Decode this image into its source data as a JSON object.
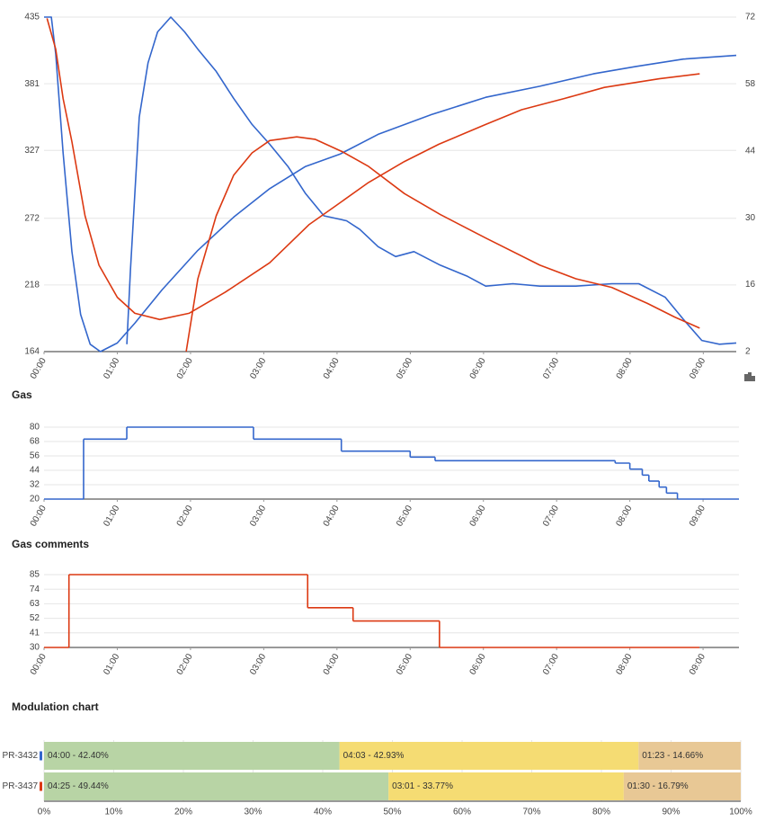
{
  "chart_data": [
    {
      "type": "line",
      "xlim": [
        0,
        9.45
      ],
      "xticks": [
        {
          "value": 0,
          "label": "00:00"
        },
        {
          "value": 1,
          "label": "01:00"
        },
        {
          "value": 2,
          "label": "02:00"
        },
        {
          "value": 3,
          "label": "03:00"
        },
        {
          "value": 4,
          "label": "04:00"
        },
        {
          "value": 5,
          "label": "05:00"
        },
        {
          "value": 6,
          "label": "06:00"
        },
        {
          "value": 7,
          "label": "07:00"
        },
        {
          "value": 8,
          "label": "08:00"
        },
        {
          "value": 9,
          "label": "09:00"
        }
      ],
      "ylim": [
        164,
        435
      ],
      "yticks": [
        164,
        218,
        272,
        327,
        381,
        435
      ],
      "y2lim": [
        2,
        72
      ],
      "y2ticks": [
        2,
        16,
        30,
        44,
        58,
        72
      ],
      "grid": true,
      "series": [
        {
          "color": "#3366cc",
          "x": [
            0,
            0.1,
            0.16,
            0.26,
            0.38,
            0.5,
            0.63,
            0.77,
            1.0,
            1.24,
            1.61,
            2.1,
            2.59,
            3.08,
            3.57,
            4.04,
            4.56,
            5.29,
            6.03,
            6.77,
            7.5,
            8.08,
            8.73,
            9.45
          ],
          "values": [
            435,
            435,
            405,
            325,
            245,
            194,
            170,
            164,
            171,
            187,
            214,
            246,
            273,
            296,
            314,
            324,
            340,
            356,
            370,
            379,
            389,
            395,
            401,
            404
          ]
        },
        {
          "color": "#3366cc",
          "x": [
            1.13,
            1.18,
            1.3,
            1.42,
            1.55,
            1.73,
            1.92,
            2.1,
            2.35,
            2.59,
            2.84,
            3.08,
            3.33,
            3.57,
            3.82,
            4.13,
            4.31,
            4.56,
            4.8,
            5.05,
            5.41,
            5.78,
            6.03,
            6.4,
            6.77,
            7.26,
            7.75,
            8.12,
            8.48,
            8.73,
            8.98,
            9.22,
            9.45
          ],
          "values": [
            170,
            230,
            354,
            398,
            423,
            435,
            423,
            409,
            391,
            369,
            348,
            332,
            314,
            292,
            274,
            270,
            263,
            249,
            241,
            245,
            234,
            225,
            217,
            219,
            217,
            217,
            219,
            219,
            208,
            190,
            173,
            170,
            171
          ]
        },
        {
          "color": "#dc3912",
          "x": [
            0.04,
            0.16,
            0.26,
            0.38,
            0.56,
            0.75,
            1.0,
            1.24,
            1.58,
            1.98,
            2.47,
            3.08,
            3.62,
            3.98,
            4.43,
            4.92,
            5.39,
            6.03,
            6.52,
            7.1,
            7.65,
            8.4,
            8.95
          ],
          "values": [
            434,
            409,
            369,
            334,
            274,
            234,
            208,
            195,
            190,
            195,
            212,
            236,
            267,
            282,
            301,
            318,
            332,
            348,
            360,
            369,
            378,
            385,
            389
          ]
        },
        {
          "color": "#dc3912",
          "x": [
            1.94,
            2.1,
            2.35,
            2.59,
            2.84,
            3.08,
            3.45,
            3.7,
            4.07,
            4.43,
            4.92,
            5.41,
            6.03,
            6.77,
            7.26,
            7.75,
            8.24,
            8.61,
            8.95
          ],
          "values": [
            164,
            223,
            274,
            307,
            325,
            335,
            338,
            336,
            326,
            314,
            292,
            275,
            256,
            234,
            223,
            216,
            203,
            192,
            183
          ]
        }
      ]
    },
    {
      "type": "step",
      "title": "Gas",
      "color": "#3366cc",
      "x": [
        0,
        0.54,
        1.13,
        2.86,
        4.06,
        5.0,
        5.34,
        7.8,
        8.0,
        8.17,
        8.26,
        8.4,
        8.5,
        8.65,
        9.49
      ],
      "values": [
        20,
        70,
        80,
        70,
        60,
        55,
        52,
        50,
        45,
        40,
        35,
        30,
        25,
        20,
        20
      ],
      "xlim": [
        0,
        9.49
      ],
      "xticks": [
        {
          "value": 0,
          "label": "00:00"
        },
        {
          "value": 1,
          "label": "01:00"
        },
        {
          "value": 2,
          "label": "02:00"
        },
        {
          "value": 3,
          "label": "03:00"
        },
        {
          "value": 4,
          "label": "04:00"
        },
        {
          "value": 5,
          "label": "05:00"
        },
        {
          "value": 6,
          "label": "06:00"
        },
        {
          "value": 7,
          "label": "07:00"
        },
        {
          "value": 8,
          "label": "08:00"
        },
        {
          "value": 9,
          "label": "09:00"
        }
      ],
      "ylim": [
        20,
        80
      ],
      "yticks": [
        20,
        32,
        44,
        56,
        68,
        80
      ],
      "grid": true
    },
    {
      "type": "step",
      "title": "Gas comments",
      "color": "#dc3912",
      "x": [
        0,
        0.34,
        3.6,
        4.22,
        5.4,
        8.95
      ],
      "values": [
        30,
        85,
        60,
        50,
        30,
        30
      ],
      "xlim": [
        0,
        9.49
      ],
      "xticks": [
        {
          "value": 0,
          "label": "00:00"
        },
        {
          "value": 1,
          "label": "01:00"
        },
        {
          "value": 2,
          "label": "02:00"
        },
        {
          "value": 3,
          "label": "03:00"
        },
        {
          "value": 4,
          "label": "04:00"
        },
        {
          "value": 5,
          "label": "05:00"
        },
        {
          "value": 6,
          "label": "06:00"
        },
        {
          "value": 7,
          "label": "07:00"
        },
        {
          "value": 8,
          "label": "08:00"
        },
        {
          "value": 9,
          "label": "09:00"
        }
      ],
      "ylim": [
        30,
        85
      ],
      "yticks": [
        30,
        41,
        52,
        63,
        74,
        85
      ],
      "grid": true
    },
    {
      "type": "stacked-hbar",
      "title": "Modulation chart",
      "categories": [
        "PR-3432",
        "PR-3437"
      ],
      "category_colors": [
        "#3366cc",
        "#dc3912"
      ],
      "xlim": [
        0,
        100
      ],
      "xticks": [
        {
          "value": 0,
          "label": "0%"
        },
        {
          "value": 10,
          "label": "10%"
        },
        {
          "value": 20,
          "label": "20%"
        },
        {
          "value": 30,
          "label": "30%"
        },
        {
          "value": 40,
          "label": "40%"
        },
        {
          "value": 50,
          "label": "50%"
        },
        {
          "value": 60,
          "label": "60%"
        },
        {
          "value": 70,
          "label": "70%"
        },
        {
          "value": 80,
          "label": "80%"
        },
        {
          "value": 90,
          "label": "90%"
        },
        {
          "value": 100,
          "label": "100%"
        }
      ],
      "series": [
        {
          "color": "#b8d4a5",
          "values": [
            42.4,
            49.44
          ],
          "value_labels": [
            "04:00 - 42.40%",
            "04:25 - 49.44%"
          ]
        },
        {
          "color": "#f5dc73",
          "values": [
            42.93,
            33.77
          ],
          "value_labels": [
            "04:03 - 42.93%",
            "03:01 - 33.77%"
          ]
        },
        {
          "color": "#e8c895",
          "values": [
            14.66,
            16.79
          ],
          "value_labels": [
            "01:23 - 14.66%",
            "01:30 - 16.79%"
          ]
        }
      ]
    }
  ]
}
